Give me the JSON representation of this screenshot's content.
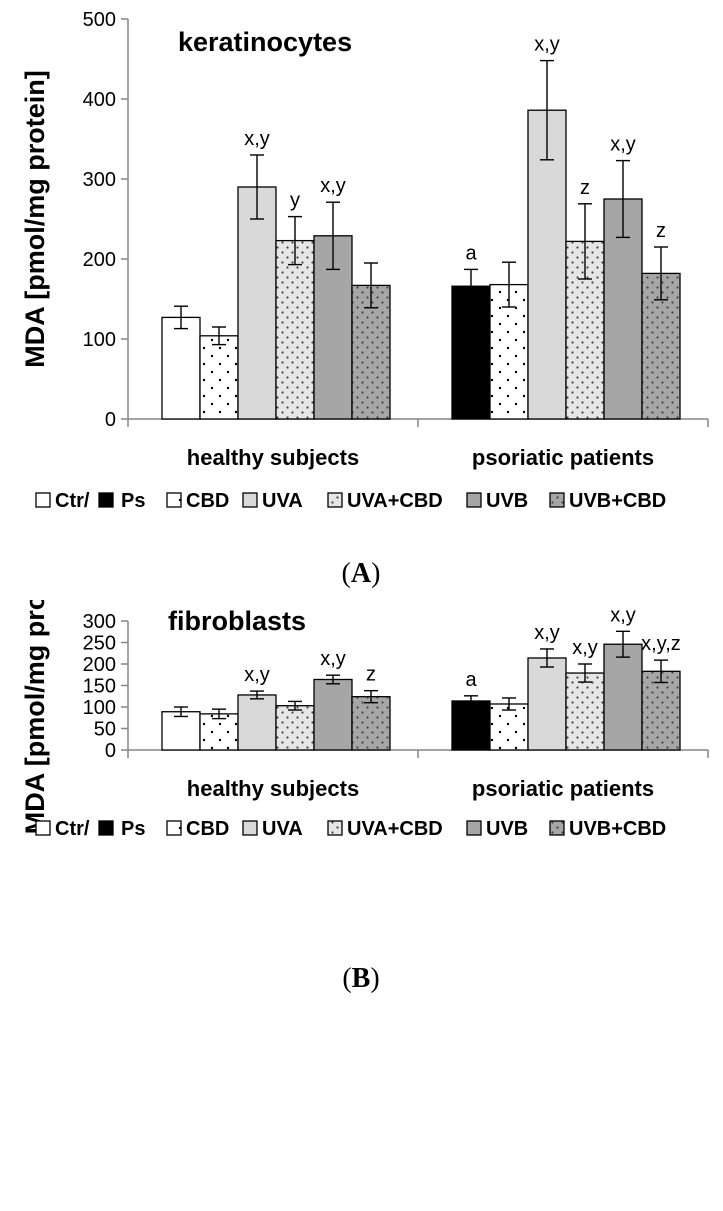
{
  "chart_data": [
    {
      "type": "bar",
      "title": "keratinocytes",
      "panel_label": "(A)",
      "panel_prefix": "(",
      "panel_letter": "A",
      "panel_suffix": ")",
      "ylabel": "MDA [pmol/mg protein]",
      "xlabel": "",
      "ylim": [
        0,
        500
      ],
      "yticks": [
        0,
        100,
        200,
        300,
        400,
        500
      ],
      "categories": [
        "healthy subjects",
        "psoriatic patients"
      ],
      "series": [
        {
          "name": "Ctr/ Ps",
          "values": [
            127,
            166
          ],
          "errors": [
            14,
            21
          ],
          "labels": [
            "",
            "a"
          ]
        },
        {
          "name": "CBD",
          "values": [
            104,
            168
          ],
          "errors": [
            11,
            28
          ],
          "labels": [
            "",
            ""
          ]
        },
        {
          "name": "UVA",
          "values": [
            290,
            386
          ],
          "errors": [
            40,
            62
          ],
          "labels": [
            "x,y",
            "x,y"
          ]
        },
        {
          "name": "UVA+CBD",
          "values": [
            223,
            222
          ],
          "errors": [
            30,
            47
          ],
          "labels": [
            "y",
            "z"
          ]
        },
        {
          "name": "UVB",
          "values": [
            229,
            275
          ],
          "errors": [
            42,
            48
          ],
          "labels": [
            "x,y",
            "x,y"
          ]
        },
        {
          "name": "UVB+CBD",
          "values": [
            167,
            182
          ],
          "errors": [
            28,
            33
          ],
          "labels": [
            "",
            "z"
          ]
        }
      ]
    },
    {
      "type": "bar",
      "title": "fibroblasts",
      "panel_label": "(B)",
      "panel_prefix": "(",
      "panel_letter": "B",
      "panel_suffix": ")",
      "ylabel": "MDA [pmol/mg protein]",
      "xlabel": "",
      "ylim": [
        0,
        300
      ],
      "yticks": [
        0,
        50,
        100,
        150,
        200,
        250,
        300
      ],
      "categories": [
        "healthy subjects",
        "psoriatic patients"
      ],
      "series": [
        {
          "name": "Ctr/ Ps",
          "values": [
            89,
            114
          ],
          "errors": [
            11,
            12
          ],
          "labels": [
            "",
            "a"
          ]
        },
        {
          "name": "CBD",
          "values": [
            84,
            107
          ],
          "errors": [
            11,
            14
          ],
          "labels": [
            "",
            ""
          ]
        },
        {
          "name": "UVA",
          "values": [
            128,
            214
          ],
          "errors": [
            9,
            21
          ],
          "labels": [
            "x,y",
            "x,y"
          ]
        },
        {
          "name": "UVA+CBD",
          "values": [
            103,
            179
          ],
          "errors": [
            10,
            21
          ],
          "labels": [
            "",
            "x,y"
          ]
        },
        {
          "name": "UVB",
          "values": [
            164,
            246
          ],
          "errors": [
            10,
            30
          ],
          "labels": [
            "x,y",
            "x,y"
          ]
        },
        {
          "name": "UVB+CBD",
          "values": [
            124,
            183
          ],
          "errors": [
            14,
            26
          ],
          "labels": [
            "z",
            "x,y,z"
          ]
        }
      ]
    }
  ],
  "legend": {
    "first_left": "Ctr/",
    "first_right": "Ps",
    "items": [
      "CBD",
      "UVA",
      "UVA+CBD",
      "UVB",
      "UVB+CBD"
    ]
  },
  "colors": {
    "ctr_fill": "#ffffff",
    "ps_fill": "#000000",
    "cbd_fill": "#ffffff",
    "uva_fill": "#d9d9d9",
    "uva_cbd_fill": "#e6e6e6",
    "uvb_fill": "#a6a6a6",
    "uvb_cbd_fill": "#a6a6a6",
    "axis": "#868686"
  }
}
